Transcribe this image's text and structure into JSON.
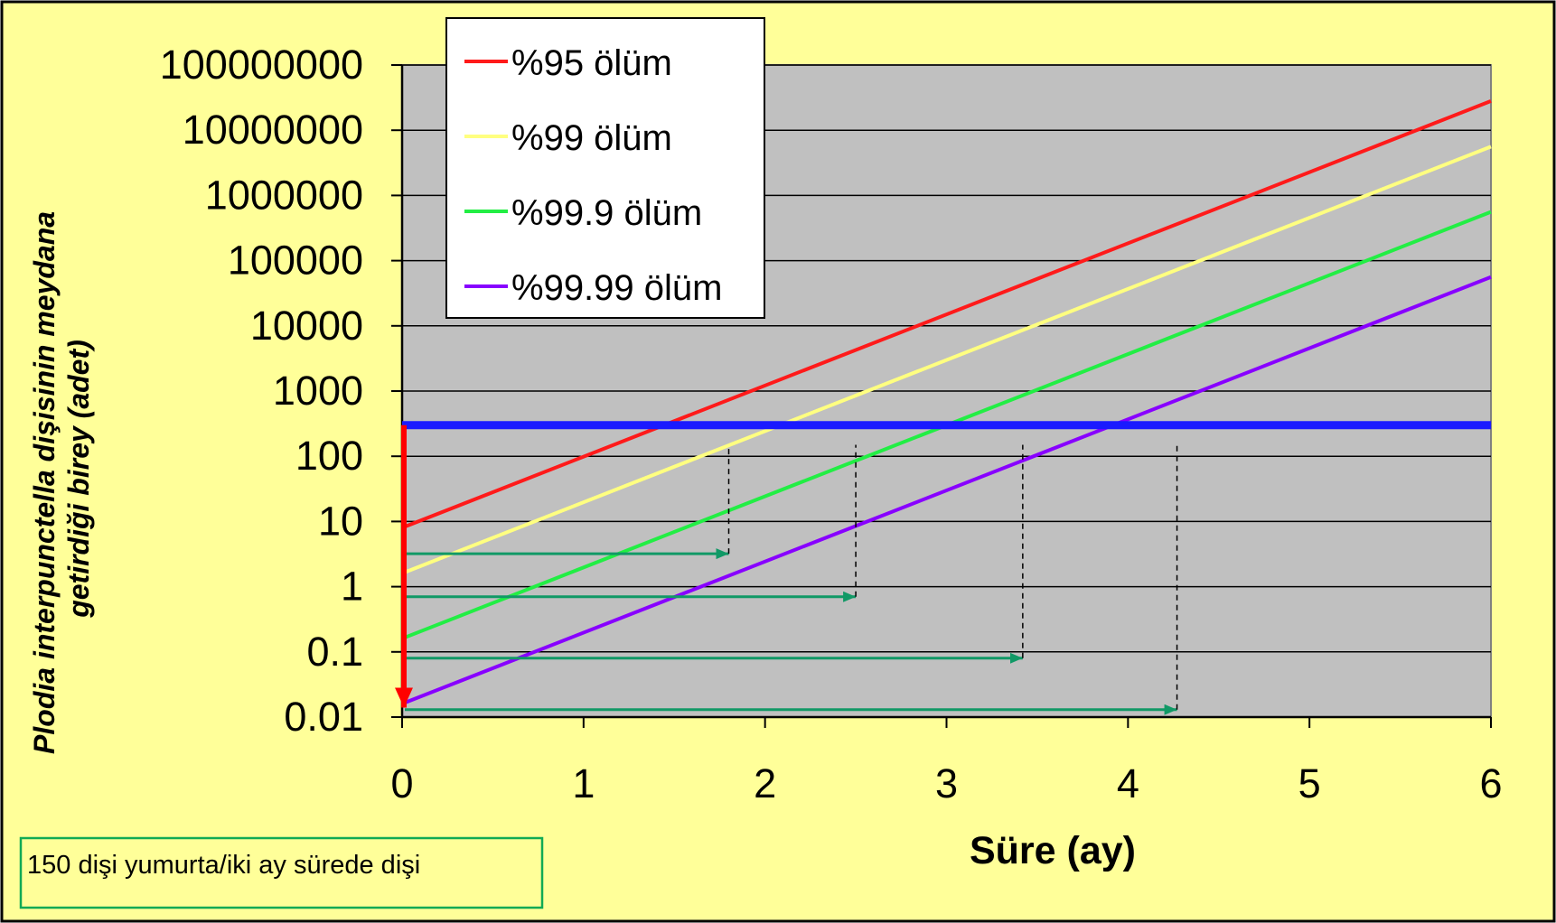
{
  "chart_data": {
    "type": "line",
    "xlabel": "Süre (ay)",
    "ylabel": [
      "Plodia interpunctella dişisinin meydana",
      "getirdiği birey (adet)"
    ],
    "xlim": [
      0,
      6
    ],
    "ylim": [
      0.01,
      100000000
    ],
    "yscale": "log",
    "x_ticks": [
      "0",
      "1",
      "2",
      "3",
      "4",
      "5",
      "6"
    ],
    "y_ticks": [
      "0.01",
      "0.1",
      "1",
      "10",
      "100",
      "1000",
      "10000",
      "100000",
      "1000000",
      "10000000",
      "100000000"
    ],
    "grid": "horizontal",
    "legend_position": "top-left",
    "series": [
      {
        "name": "%95 ölüm",
        "color": "#ff1a1a",
        "x": [
          0,
          6
        ],
        "y": [
          8,
          28000000
        ]
      },
      {
        "name": "%99 ölüm",
        "color": "#ffff80",
        "x": [
          0,
          6
        ],
        "y": [
          1.6,
          5600000
        ]
      },
      {
        "name": "%99.9 ölüm",
        "color": "#22ee44",
        "x": [
          0,
          6
        ],
        "y": [
          0.16,
          560000
        ]
      },
      {
        "name": "%99.99 ölüm",
        "color": "#8800ff",
        "x": [
          0,
          6
        ],
        "y": [
          0.016,
          56000
        ]
      }
    ],
    "threshold": {
      "y": 300,
      "color": "#1a1aff"
    },
    "down_arrow": {
      "x": 0,
      "y_from": 300,
      "y_to": 0.014,
      "color": "#ff0000"
    },
    "crossings": [
      {
        "y": 3.2,
        "x": 1.8
      },
      {
        "y": 0.7,
        "x": 2.5
      },
      {
        "y": 0.08,
        "x": 3.42
      },
      {
        "y": 0.013,
        "x": 4.27
      }
    ],
    "annotation": "150 dişi yumurta/iki ay sürede dişi"
  },
  "colors": {
    "background": "#ffff99",
    "plot_area": "#c0c0c0",
    "arrow_green": "#119966",
    "annotation_border": "#11aa55"
  }
}
